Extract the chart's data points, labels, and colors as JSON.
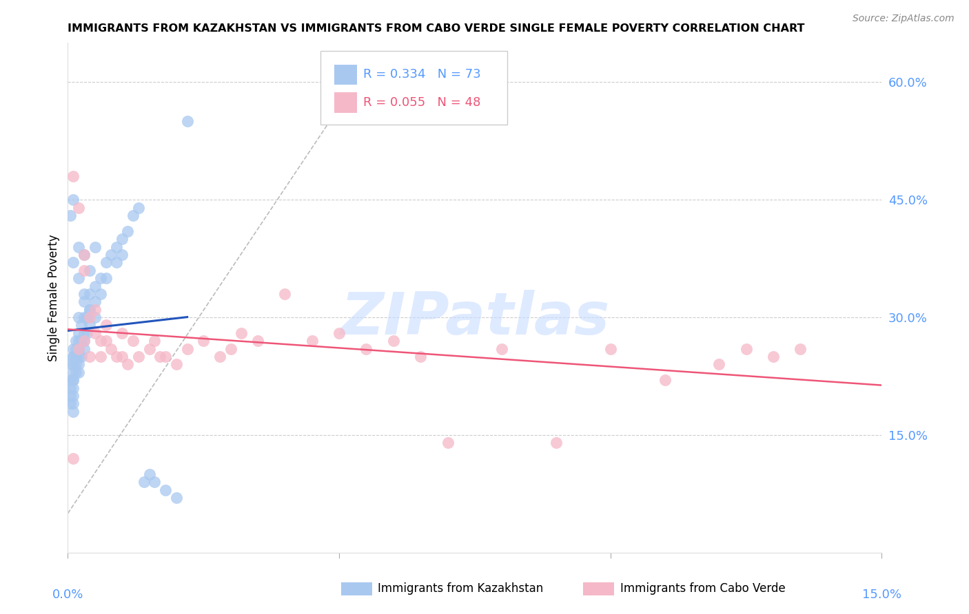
{
  "title": "IMMIGRANTS FROM KAZAKHSTAN VS IMMIGRANTS FROM CABO VERDE SINGLE FEMALE POVERTY CORRELATION CHART",
  "source": "Source: ZipAtlas.com",
  "ylabel": "Single Female Poverty",
  "right_ytick_labels": [
    "15.0%",
    "30.0%",
    "45.0%",
    "60.0%"
  ],
  "right_ytick_values": [
    0.15,
    0.3,
    0.45,
    0.6
  ],
  "xlim": [
    0.0,
    0.15
  ],
  "ylim": [
    0.0,
    0.65
  ],
  "color_kaz": "#A8C8F0",
  "color_cabo": "#F5B8C8",
  "trendline_kaz_color": "#2255BB",
  "trendline_cabo_color": "#EE5577",
  "trendline_ref_color": "#BBBBBB",
  "watermark": "ZIPatlas",
  "kaz_x": [
    0.0005,
    0.0005,
    0.0005,
    0.0005,
    0.0005,
    0.001,
    0.001,
    0.001,
    0.001,
    0.001,
    0.001,
    0.001,
    0.001,
    0.001,
    0.001,
    0.001,
    0.0015,
    0.0015,
    0.0015,
    0.0015,
    0.0015,
    0.002,
    0.002,
    0.002,
    0.002,
    0.002,
    0.002,
    0.002,
    0.0025,
    0.0025,
    0.0025,
    0.003,
    0.003,
    0.003,
    0.003,
    0.003,
    0.0035,
    0.0035,
    0.004,
    0.004,
    0.004,
    0.005,
    0.005,
    0.005,
    0.006,
    0.006,
    0.007,
    0.007,
    0.008,
    0.009,
    0.009,
    0.01,
    0.01,
    0.011,
    0.012,
    0.013,
    0.014,
    0.015,
    0.016,
    0.018,
    0.02,
    0.022,
    0.0005,
    0.001,
    0.001,
    0.002,
    0.002,
    0.003,
    0.003,
    0.004,
    0.004,
    0.005
  ],
  "kaz_y": [
    0.24,
    0.22,
    0.21,
    0.2,
    0.19,
    0.26,
    0.25,
    0.25,
    0.24,
    0.23,
    0.22,
    0.22,
    0.21,
    0.2,
    0.19,
    0.18,
    0.27,
    0.26,
    0.25,
    0.24,
    0.23,
    0.3,
    0.28,
    0.27,
    0.26,
    0.25,
    0.24,
    0.23,
    0.29,
    0.27,
    0.25,
    0.32,
    0.3,
    0.28,
    0.27,
    0.26,
    0.3,
    0.28,
    0.33,
    0.31,
    0.29,
    0.34,
    0.32,
    0.3,
    0.35,
    0.33,
    0.37,
    0.35,
    0.38,
    0.39,
    0.37,
    0.4,
    0.38,
    0.41,
    0.43,
    0.44,
    0.09,
    0.1,
    0.09,
    0.08,
    0.07,
    0.55,
    0.43,
    0.37,
    0.45,
    0.39,
    0.35,
    0.38,
    0.33,
    0.36,
    0.31,
    0.39
  ],
  "cabo_x": [
    0.001,
    0.001,
    0.002,
    0.002,
    0.003,
    0.003,
    0.003,
    0.004,
    0.004,
    0.005,
    0.005,
    0.006,
    0.006,
    0.007,
    0.007,
    0.008,
    0.009,
    0.01,
    0.01,
    0.011,
    0.012,
    0.013,
    0.015,
    0.016,
    0.017,
    0.018,
    0.02,
    0.022,
    0.025,
    0.028,
    0.03,
    0.032,
    0.035,
    0.04,
    0.045,
    0.05,
    0.055,
    0.06,
    0.065,
    0.07,
    0.08,
    0.09,
    0.1,
    0.11,
    0.12,
    0.125,
    0.13,
    0.135
  ],
  "cabo_y": [
    0.12,
    0.48,
    0.44,
    0.26,
    0.36,
    0.27,
    0.38,
    0.3,
    0.25,
    0.31,
    0.28,
    0.27,
    0.25,
    0.29,
    0.27,
    0.26,
    0.25,
    0.28,
    0.25,
    0.24,
    0.27,
    0.25,
    0.26,
    0.27,
    0.25,
    0.25,
    0.24,
    0.26,
    0.27,
    0.25,
    0.26,
    0.28,
    0.27,
    0.33,
    0.27,
    0.28,
    0.26,
    0.27,
    0.25,
    0.14,
    0.26,
    0.14,
    0.26,
    0.22,
    0.24,
    0.26,
    0.25,
    0.26
  ]
}
